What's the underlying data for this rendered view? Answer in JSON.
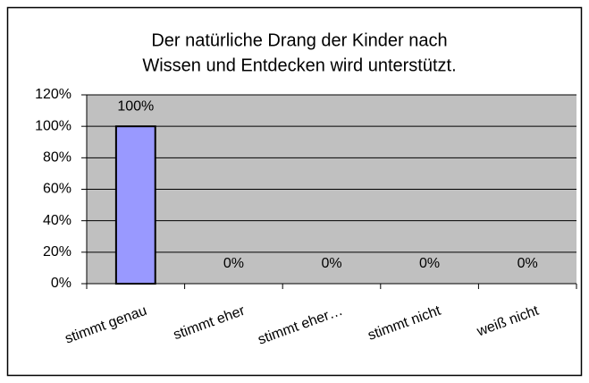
{
  "chart_data": {
    "type": "bar",
    "title": [
      "Der natürliche Drang der Kinder nach",
      "Wissen und Entdecken wird unterstützt."
    ],
    "categories": [
      "stimmt genau",
      "stimmt eher",
      "stimmt eher…",
      "stimmt nicht",
      "weiß nicht"
    ],
    "values": [
      100,
      0,
      0,
      0,
      0
    ],
    "value_labels": [
      "100%",
      "0%",
      "0%",
      "0%",
      "0%"
    ],
    "color": "#9999ff",
    "ylim": [
      0,
      120
    ],
    "yticks": [
      {
        "value": 0,
        "label": "0%"
      },
      {
        "value": 20,
        "label": "20%"
      },
      {
        "value": 40,
        "label": "40%"
      },
      {
        "value": 60,
        "label": "60%"
      },
      {
        "value": 80,
        "label": "80%"
      },
      {
        "value": 100,
        "label": "100%"
      },
      {
        "value": 120,
        "label": "120%"
      }
    ],
    "grid": true
  }
}
